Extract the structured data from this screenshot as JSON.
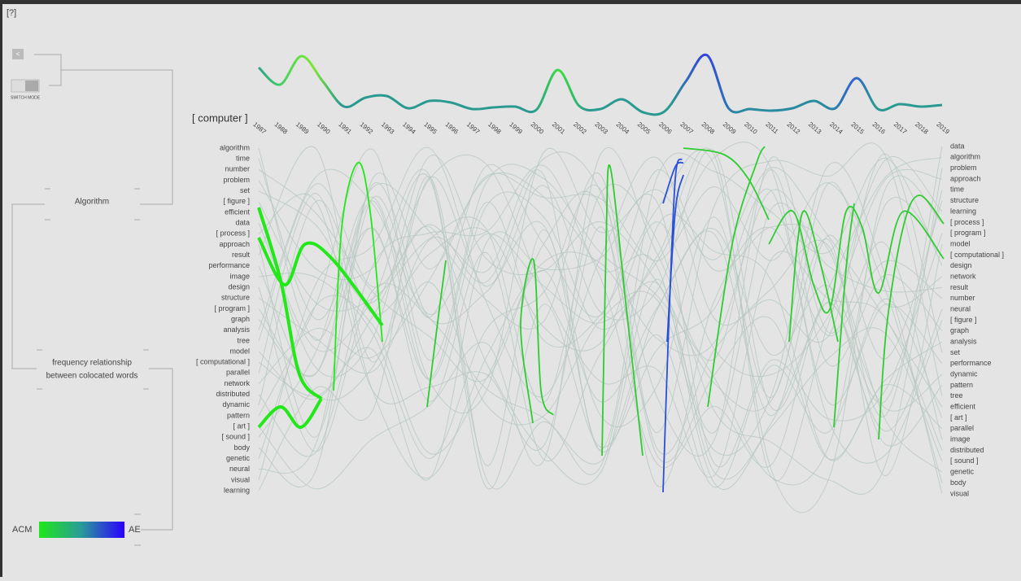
{
  "help": "[?]",
  "back_button": "<",
  "switch_mode": "SWITCH MODE",
  "panels": {
    "algorithm": "Algorithm",
    "relationship": [
      "frequency relationship",
      "between colocated words"
    ]
  },
  "query": "[ computer ]",
  "years": [
    1987,
    1988,
    1989,
    1990,
    1991,
    1992,
    1993,
    1994,
    1995,
    1996,
    1997,
    1998,
    1999,
    2000,
    2001,
    2002,
    2003,
    2004,
    2005,
    2006,
    2007,
    2008,
    2009,
    2010,
    2011,
    2012,
    2013,
    2014,
    2015,
    2016,
    2017,
    2018,
    2019
  ],
  "left_words": [
    "algorithm",
    "time",
    "number",
    "problem",
    "set",
    "[ figure ]",
    "efficient",
    "data",
    "[ process ]",
    "approach",
    "result",
    "performance",
    "image",
    "design",
    "structure",
    "[ program ]",
    "graph",
    "analysis",
    "tree",
    "model",
    "[ computational ]",
    "parallel",
    "network",
    "distributed",
    "dynamic",
    "pattern",
    "[ art ]",
    "[ sound ]",
    "body",
    "genetic",
    "neural",
    "visual",
    "learning"
  ],
  "right_words": [
    "data",
    "algorithm",
    "problem",
    "approach",
    "time",
    "structure",
    "learning",
    "[ process ]",
    "[ program ]",
    "model",
    "[ computational ]",
    "design",
    "network",
    "result",
    "number",
    "neural",
    "[ figure ]",
    "graph",
    "analysis",
    "set",
    "performance",
    "dynamic",
    "pattern",
    "tree",
    "efficient",
    "[ art ]",
    "parallel",
    "image",
    "distributed",
    "[ sound ]",
    "genetic",
    "body",
    "visual"
  ],
  "legend": {
    "left": "ACM",
    "right": "AE"
  }
}
